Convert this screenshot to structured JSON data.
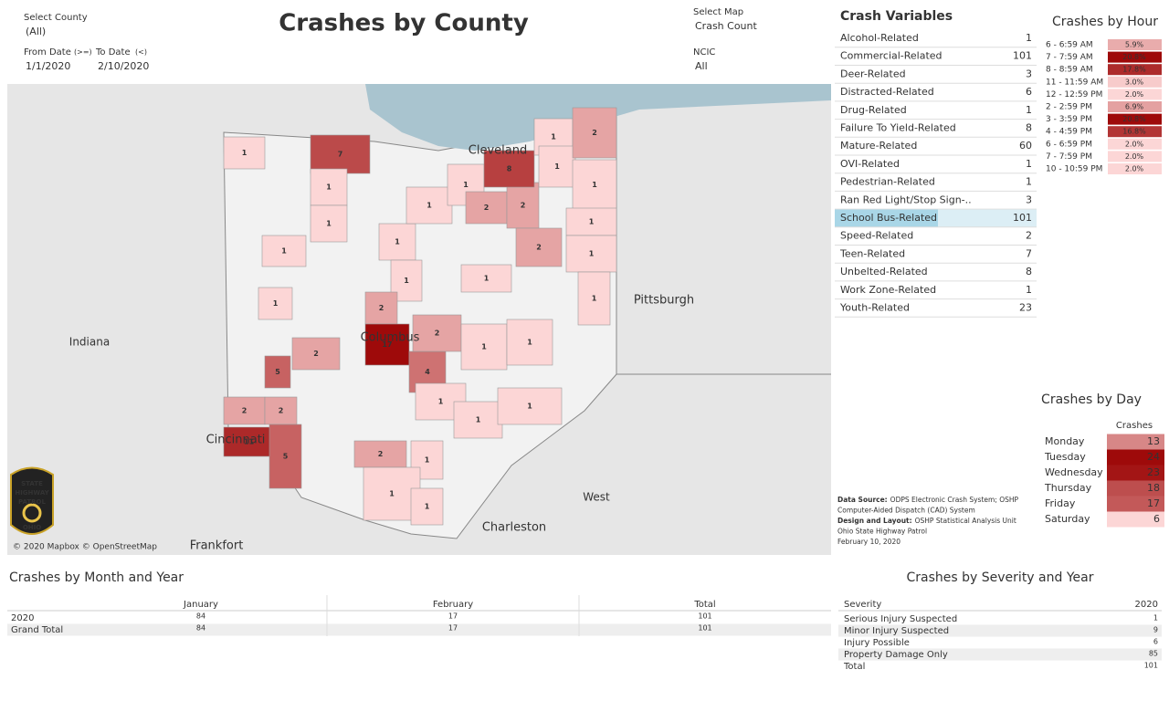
{
  "header": {
    "title": "Crashes by County",
    "filters": [
      {
        "label": "Select County",
        "value": "(All)"
      },
      {
        "label": "From Date",
        "qualifier": "(>=)",
        "value": "1/1/2020"
      },
      {
        "label": "To Date",
        "qualifier": "(<)",
        "value": "2/10/2020"
      },
      {
        "label": "Select Map",
        "value": "Crash Count"
      },
      {
        "label": "NCIC",
        "value": "All"
      }
    ]
  },
  "map": {
    "labels": [
      "Cleveland",
      "Columbus",
      "Pittsburgh",
      "Indiana",
      "West",
      "Charleston",
      "Frankfort",
      "Cincinnati"
    ],
    "attribution": "© 2020 Mapbox © OpenStreetMap",
    "logo": [
      "STATE",
      "HIGHWAY",
      "PATROL",
      "OHIO"
    ],
    "counties": [
      {
        "value": 1
      },
      {
        "value": 7
      },
      {
        "value": 1
      },
      {
        "value": 1
      },
      {
        "value": 1
      },
      {
        "value": 1
      },
      {
        "value": 1
      },
      {
        "value": 1
      },
      {
        "value": 2
      },
      {
        "value": 17
      },
      {
        "value": 2
      },
      {
        "value": 5
      },
      {
        "value": 2
      },
      {
        "value": 2
      },
      {
        "value": 11
      },
      {
        "value": 5
      },
      {
        "value": 4
      },
      {
        "value": 2
      },
      {
        "value": 1
      },
      {
        "value": 1
      },
      {
        "value": 1
      },
      {
        "value": 1
      },
      {
        "value": 1
      },
      {
        "value": 2
      },
      {
        "value": 1
      },
      {
        "value": 1
      },
      {
        "value": 1
      },
      {
        "value": 1
      },
      {
        "value": 1
      },
      {
        "value": 1
      },
      {
        "value": 2
      },
      {
        "value": 2
      },
      {
        "value": 8
      },
      {
        "value": 1
      },
      {
        "value": 1
      },
      {
        "value": 2
      },
      {
        "value": 1
      },
      {
        "value": 1
      },
      {
        "value": 1
      },
      {
        "value": 2
      },
      {
        "value": 1
      }
    ]
  },
  "crash_variables": {
    "title": "Crash Variables",
    "selected": 10,
    "rows": [
      {
        "label": "Alcohol-Related",
        "value": 1
      },
      {
        "label": "Commercial-Related",
        "value": 101
      },
      {
        "label": "Deer-Related",
        "value": 3
      },
      {
        "label": "Distracted-Related",
        "value": 6
      },
      {
        "label": "Drug-Related",
        "value": 1
      },
      {
        "label": "Failure To Yield-Related",
        "value": 8
      },
      {
        "label": "Mature-Related",
        "value": 60
      },
      {
        "label": "OVI-Related",
        "value": 1
      },
      {
        "label": "Pedestrian-Related",
        "value": 1
      },
      {
        "label": "Ran Red Light/Stop Sign-..",
        "value": 3
      },
      {
        "label": "School Bus-Related",
        "value": 101
      },
      {
        "label": "Speed-Related",
        "value": 2
      },
      {
        "label": "Teen-Related",
        "value": 7
      },
      {
        "label": "Unbelted-Related",
        "value": 8
      },
      {
        "label": "Work Zone-Related",
        "value": 1
      },
      {
        "label": "Youth-Related",
        "value": 23
      }
    ]
  },
  "crashes_by_hour": {
    "title": "Crashes by Hour",
    "rows": [
      {
        "label": "6 - 6:59 AM",
        "value": 5.9,
        "value_label": "5.9%"
      },
      {
        "label": "7 - 7:59 AM",
        "value": 20.8,
        "value_label": "20.8%"
      },
      {
        "label": "8 - 8:59 AM",
        "value": 17.8,
        "value_label": "17.8%"
      },
      {
        "label": "11 - 11:59 AM",
        "value": 3.0,
        "value_label": "3.0%"
      },
      {
        "label": "12 - 12:59 PM",
        "value": 2.0,
        "value_label": "2.0%"
      },
      {
        "label": "2 - 2:59 PM",
        "value": 6.9,
        "value_label": "6.9%"
      },
      {
        "label": "3 - 3:59 PM",
        "value": 20.8,
        "value_label": "20.8%"
      },
      {
        "label": "4 - 4:59 PM",
        "value": 16.8,
        "value_label": "16.8%"
      },
      {
        "label": "6 - 6:59 PM",
        "value": 2.0,
        "value_label": "2.0%"
      },
      {
        "label": "7 - 7:59 PM",
        "value": 2.0,
        "value_label": "2.0%"
      },
      {
        "label": "10 - 10:59 PM",
        "value": 2.0,
        "value_label": "2.0%"
      }
    ]
  },
  "crashes_by_day": {
    "title": "Crashes by Day",
    "column": "Crashes",
    "rows": [
      {
        "label": "Monday",
        "value": 13
      },
      {
        "label": "Tuesday",
        "value": 24
      },
      {
        "label": "Wednesday",
        "value": 23
      },
      {
        "label": "Thursday",
        "value": 18
      },
      {
        "label": "Friday",
        "value": 17
      },
      {
        "label": "Saturday",
        "value": 6
      }
    ]
  },
  "footnote": [
    {
      "bold": "Data Source:",
      "text": "ODPS Electronic Crash System; OSHP"
    },
    {
      "text": "Computer-Aided Dispatch (CAD) System"
    },
    {
      "bold": "Design and Layout:",
      "text": "OSHP Statistical Analysis Unit"
    },
    {
      "text": "Ohio State Highway Patrol"
    },
    {
      "text": "February 10, 2020"
    }
  ],
  "month_table": {
    "title": "Crashes by Month and Year",
    "columns": [
      "January",
      "February",
      "Total"
    ],
    "rows": [
      {
        "label": "2020",
        "values": [
          84,
          17,
          101
        ]
      },
      {
        "label": "Grand Total",
        "values": [
          84,
          17,
          101
        ]
      }
    ]
  },
  "severity_table": {
    "title": "Crashes by Severity and Year",
    "header": "Severity",
    "column": "2020",
    "rows": [
      {
        "label": "Serious Injury Suspected",
        "value": 1
      },
      {
        "label": "Minor Injury Suspected",
        "value": 9
      },
      {
        "label": "Injury Possible",
        "value": 6
      },
      {
        "label": "Property Damage Only",
        "value": 85
      },
      {
        "label": "Total",
        "value": 101
      }
    ]
  }
}
